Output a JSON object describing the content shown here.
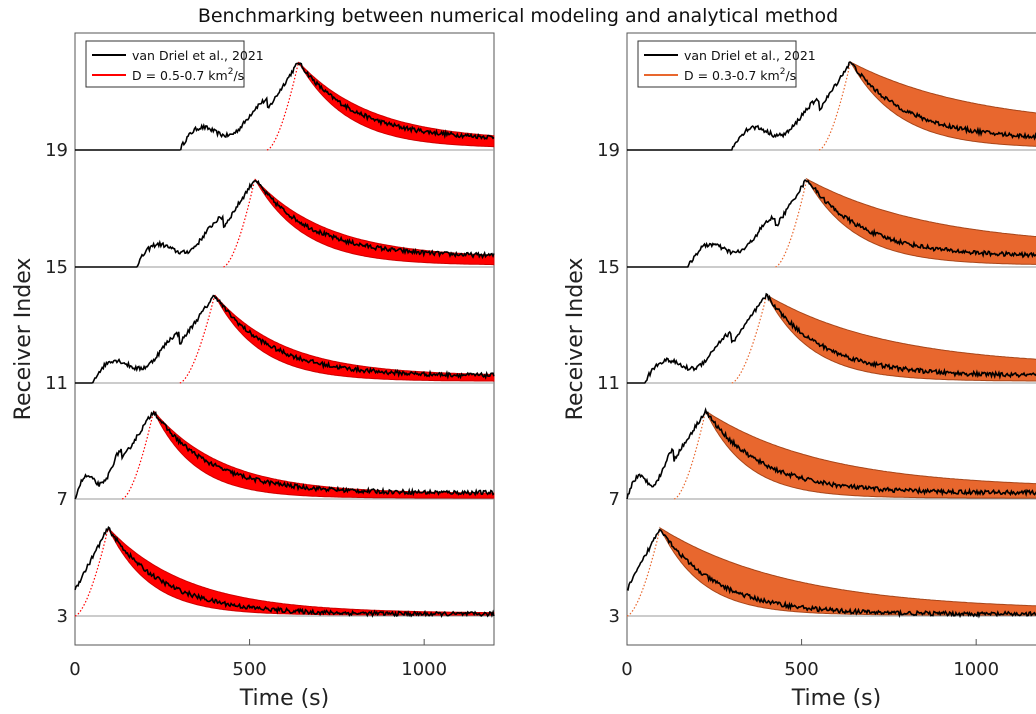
{
  "figure_title": "Benchmarking between numerical modeling and analytical method",
  "chart_data": [
    {
      "type": "line",
      "panel": "left",
      "xlabel": "Time (s)",
      "ylabel": "Receiver Index",
      "xlim": [
        0,
        1200
      ],
      "xticks": [
        0,
        500,
        1000
      ],
      "ytick_labels": [
        "19",
        "15",
        "11",
        "7",
        "3"
      ],
      "band_color": "#ff0000",
      "band_edge_color": "#cc0000",
      "line_color": "#000000",
      "legend_placement": "top-left",
      "legend": [
        {
          "label": "van Driel et al., 2021",
          "color": "#000000"
        },
        {
          "label_prefix": "D = 0.5-0.7 km",
          "label_sup": "2",
          "label_suffix": "/s",
          "color": "#ff0000"
        }
      ],
      "traces": [
        {
          "receiver": "19",
          "onset": 550,
          "peak_time": 640,
          "band_tail_low": 0.02,
          "band_tail_high": 0.1,
          "decay_low": 140,
          "decay_high": 210,
          "obs_offset": 0.12
        },
        {
          "receiver": "15",
          "onset": 425,
          "peak_time": 515,
          "band_tail_low": 0.02,
          "band_tail_high": 0.1,
          "decay_low": 140,
          "decay_high": 210,
          "obs_offset": 0.12
        },
        {
          "receiver": "11",
          "onset": 300,
          "peak_time": 400,
          "band_tail_low": 0.02,
          "band_tail_high": 0.08,
          "decay_low": 130,
          "decay_high": 200,
          "obs_offset": 0.08
        },
        {
          "receiver": "7",
          "onset": 135,
          "peak_time": 225,
          "band_tail_low": 0.01,
          "band_tail_high": 0.06,
          "decay_low": 120,
          "decay_high": 200,
          "obs_offset": 0.07
        },
        {
          "receiver": "3",
          "onset": 0,
          "peak_time": 95,
          "band_tail_low": 0.01,
          "band_tail_high": 0.03,
          "decay_low": 120,
          "decay_high": 230,
          "obs_offset": 0.02
        }
      ]
    },
    {
      "type": "line",
      "panel": "right",
      "xlabel": "Time (s)",
      "ylabel": "Receiver Index",
      "xlim": [
        0,
        1200
      ],
      "xticks": [
        0,
        500,
        1000
      ],
      "ytick_labels": [
        "19",
        "15",
        "11",
        "7",
        "3"
      ],
      "band_color": "#e8672e",
      "band_edge_color": "#a8461a",
      "line_color": "#000000",
      "legend_placement": "top-left",
      "legend": [
        {
          "label": "van Driel et al., 2021",
          "color": "#000000"
        },
        {
          "label_prefix": "D = 0.3-0.7 km",
          "label_sup": "2",
          "label_suffix": "/s",
          "color": "#e8672e"
        }
      ],
      "traces": [
        {
          "receiver": "19",
          "onset": 550,
          "peak_time": 640,
          "band_tail_low": 0.02,
          "band_tail_high": 0.25,
          "decay_low": 140,
          "decay_high": 360,
          "obs_offset": 0.12
        },
        {
          "receiver": "15",
          "onset": 425,
          "peak_time": 515,
          "band_tail_low": 0.02,
          "band_tail_high": 0.22,
          "decay_low": 140,
          "decay_high": 360,
          "obs_offset": 0.12
        },
        {
          "receiver": "11",
          "onset": 300,
          "peak_time": 400,
          "band_tail_low": 0.02,
          "band_tail_high": 0.18,
          "decay_low": 130,
          "decay_high": 350,
          "obs_offset": 0.08
        },
        {
          "receiver": "7",
          "onset": 135,
          "peak_time": 225,
          "band_tail_low": 0.01,
          "band_tail_high": 0.12,
          "decay_low": 120,
          "decay_high": 340,
          "obs_offset": 0.07
        },
        {
          "receiver": "3",
          "onset": 0,
          "peak_time": 95,
          "band_tail_low": 0.01,
          "band_tail_high": 0.06,
          "decay_low": 120,
          "decay_high": 380,
          "obs_offset": 0.02
        }
      ]
    }
  ]
}
